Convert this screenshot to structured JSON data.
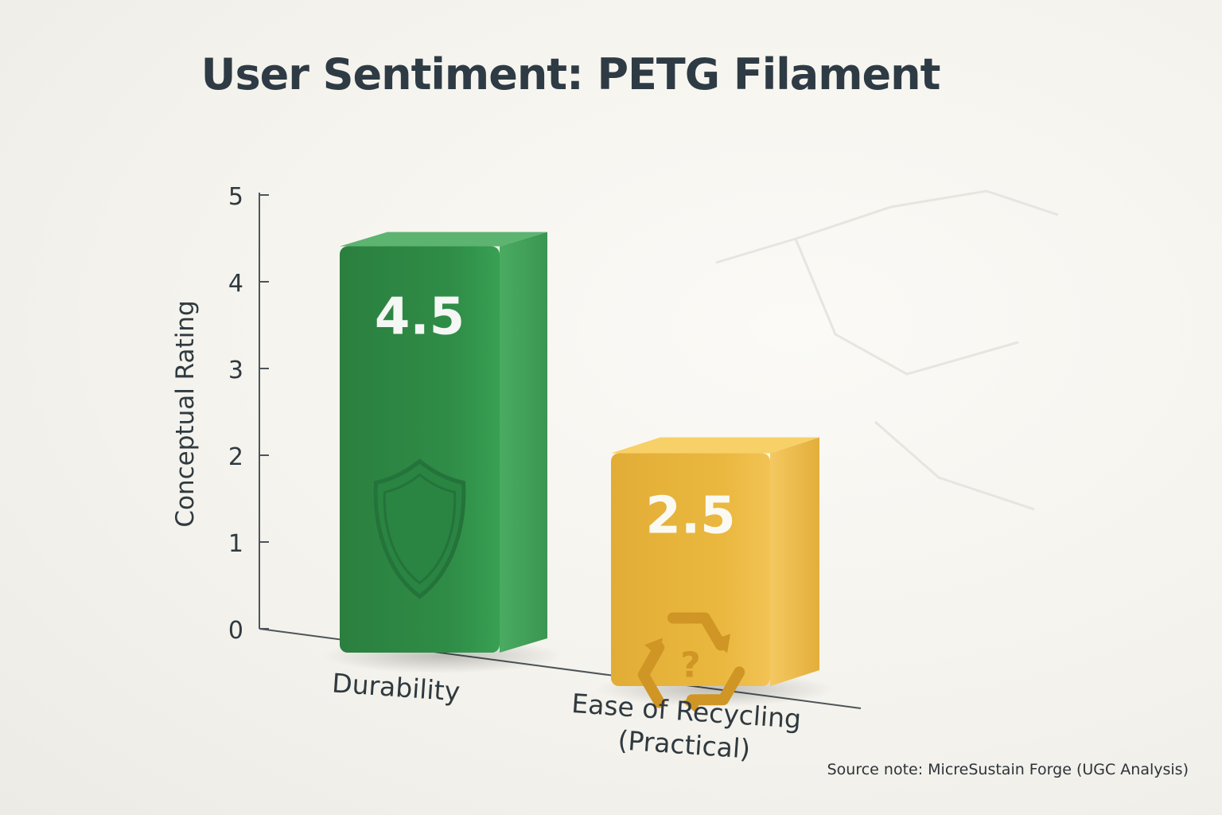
{
  "chart_data": {
    "type": "bar",
    "title": "User Sentiment: PETG Filament",
    "ylabel": "Conceptual Rating",
    "xlabel": "",
    "categories": [
      "Durability",
      "Ease of Recycling\n(Practical)"
    ],
    "values": [
      4.5,
      2.5
    ],
    "value_labels": [
      "4.5",
      "2.5"
    ],
    "ylim": [
      0,
      5
    ],
    "yticks": [
      "0",
      "1",
      "2",
      "3",
      "4",
      "5"
    ],
    "grid": false,
    "bar_colors": [
      "#2f8f48",
      "#e8b53c"
    ],
    "bar_icons": [
      "shield-icon",
      "recycle-question-icon"
    ]
  },
  "source_note": "Source note: MicreSustain Forge (UGC Analysis)"
}
